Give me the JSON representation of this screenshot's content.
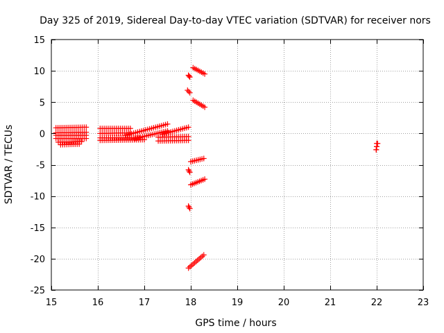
{
  "chart_data": {
    "type": "scatter",
    "title": "Day 325 of 2019, Sidereal Day-to-day VTEC variation (SDTVAR) for receiver nors",
    "xlabel": "GPS time / hours",
    "ylabel": "SDTVAR / TECUs",
    "xlim": [
      15,
      23
    ],
    "ylim": [
      -25,
      15
    ],
    "xticks": [
      15,
      16,
      17,
      18,
      19,
      20,
      21,
      22,
      23
    ],
    "yticks": [
      -25,
      -20,
      -15,
      -10,
      -5,
      0,
      5,
      10,
      15
    ],
    "grid": true,
    "marker": "plus",
    "colors": {
      "series": "#ff0000",
      "grid": "#a0a0a0",
      "axis": "#000000"
    },
    "segments": [
      {
        "x": [
          15.1,
          15.75
        ],
        "y": [
          0.9,
          1.0
        ]
      },
      {
        "x": [
          15.1,
          15.75
        ],
        "y": [
          0.1,
          0.2
        ]
      },
      {
        "x": [
          15.1,
          15.75
        ],
        "y": [
          -0.3,
          -0.3
        ]
      },
      {
        "x": [
          15.1,
          15.75
        ],
        "y": [
          -0.8,
          -0.8
        ]
      },
      {
        "x": [
          15.15,
          15.65
        ],
        "y": [
          -1.4,
          -1.3
        ]
      },
      {
        "x": [
          15.2,
          15.6
        ],
        "y": [
          -1.8,
          -1.7
        ]
      },
      {
        "x": [
          16.05,
          16.7
        ],
        "y": [
          0.8,
          0.8
        ]
      },
      {
        "x": [
          16.05,
          16.7
        ],
        "y": [
          0.0,
          0.1
        ]
      },
      {
        "x": [
          16.05,
          16.9
        ],
        "y": [
          -0.7,
          -0.7
        ]
      },
      {
        "x": [
          16.05,
          17.0
        ],
        "y": [
          -1.1,
          -1.0
        ]
      },
      {
        "x": [
          16.6,
          17.5
        ],
        "y": [
          -0.3,
          1.5
        ]
      },
      {
        "x": [
          16.8,
          17.5
        ],
        "y": [
          -0.8,
          0.4
        ]
      },
      {
        "x": [
          17.3,
          17.95
        ],
        "y": [
          -1.2,
          -1.1
        ]
      },
      {
        "x": [
          17.3,
          17.95
        ],
        "y": [
          -0.6,
          -0.5
        ]
      },
      {
        "x": [
          17.4,
          17.95
        ],
        "y": [
          -0.1,
          1.0
        ]
      },
      {
        "x": [
          17.95,
          17.98
        ],
        "y": [
          9.3,
          9.0
        ]
      },
      {
        "x": [
          17.93,
          17.98
        ],
        "y": [
          6.9,
          6.5
        ]
      },
      {
        "x": [
          18.05,
          18.3
        ],
        "y": [
          10.5,
          9.5
        ]
      },
      {
        "x": [
          18.05,
          18.3
        ],
        "y": [
          5.3,
          4.2
        ]
      },
      {
        "x": [
          18.0,
          18.28
        ],
        "y": [
          -4.5,
          -4.0
        ]
      },
      {
        "x": [
          17.95,
          17.98
        ],
        "y": [
          -5.8,
          -6.2
        ]
      },
      {
        "x": [
          18.0,
          18.3
        ],
        "y": [
          -8.2,
          -7.3
        ]
      },
      {
        "x": [
          17.95,
          17.98
        ],
        "y": [
          -11.6,
          -12.0
        ]
      },
      {
        "x": [
          17.95,
          18.28
        ],
        "y": [
          -21.5,
          -19.4
        ]
      },
      {
        "x": [
          22.0,
          22.02
        ],
        "y": [
          -1.6,
          -1.6
        ]
      },
      {
        "x": [
          22.0,
          22.0
        ],
        "y": [
          -2.1,
          -2.1
        ]
      },
      {
        "x": [
          21.99,
          21.99
        ],
        "y": [
          -2.6,
          -2.6
        ]
      }
    ]
  }
}
